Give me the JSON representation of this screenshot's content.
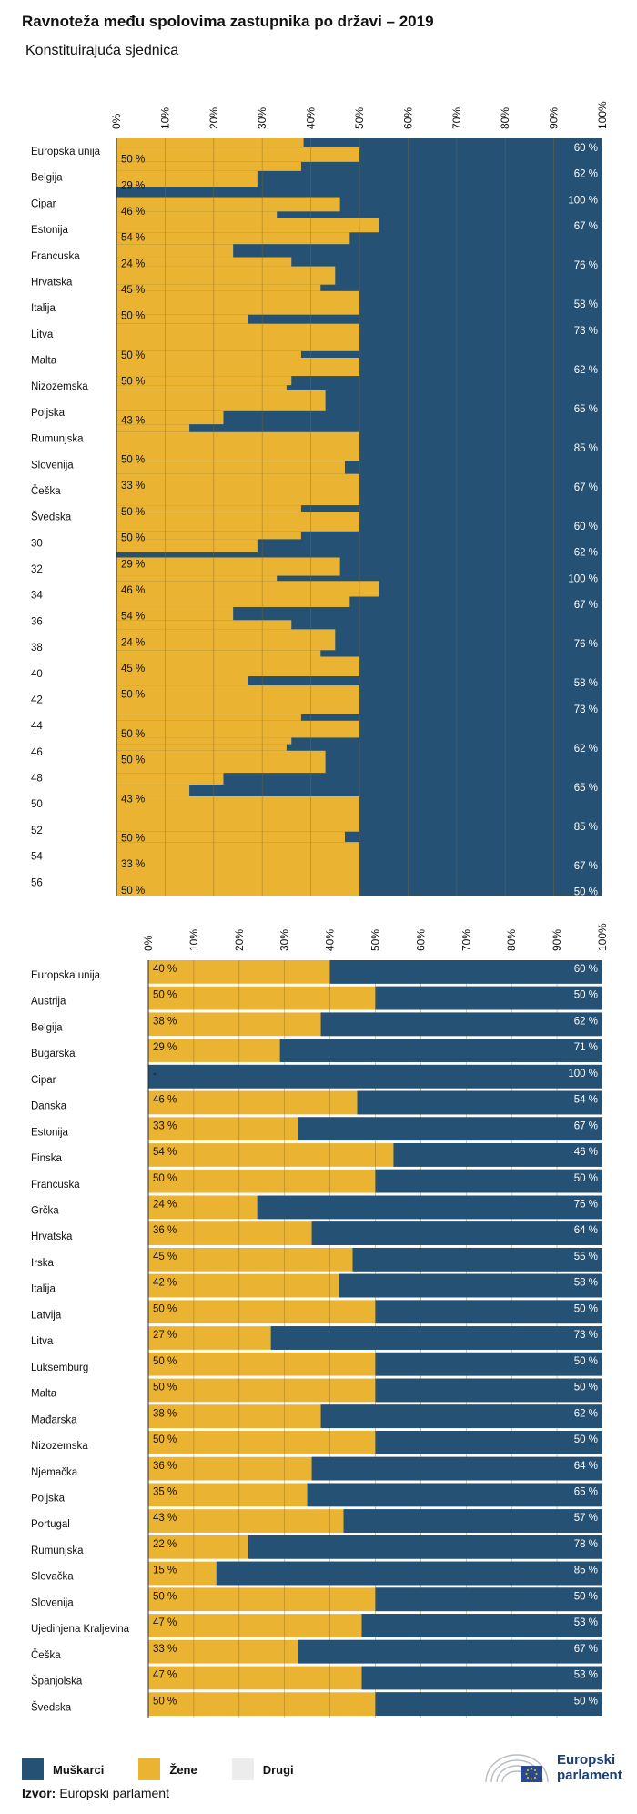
{
  "title": "Ravnoteža među spolovima zastupnika po državi – 2019",
  "subtitle": "Konstituirajuća sjednica",
  "colors": {
    "men": "#245174",
    "women": "#eab332",
    "other": "#ececec",
    "grid": "#8a6a1c"
  },
  "legend": {
    "men": "Muškarci",
    "women": "Žene",
    "other": "Drugi"
  },
  "source": {
    "label": "Izvor:",
    "text": "Europski parlament"
  },
  "logo": {
    "line1": "Europski",
    "line2": "parlament"
  },
  "chart_data": [
    {
      "type": "bar",
      "orientation": "horizontal",
      "stacked": true,
      "xlim": [
        0,
        100
      ],
      "ticks": [
        "0%",
        "10%",
        "20%",
        "30%",
        "40%",
        "50%",
        "60%",
        "70%",
        "80%",
        "90%",
        "100%"
      ],
      "grid": true,
      "categories": [
        "Europska unija",
        "Belgija",
        "Cipar",
        "Estonija",
        "Francuska",
        "Hrvatska",
        "Italija",
        "Litva",
        "Malta",
        "Nizozemska",
        "Poljska",
        "Rumunjska",
        "Slovenija",
        "Češka",
        "Švedska",
        "30",
        "32",
        "34",
        "36",
        "38",
        "40",
        "42",
        "44",
        "46",
        "48",
        "50",
        "52",
        "54",
        "56"
      ],
      "women_labels": [
        {
          "row": 0.3,
          "text": "50 %"
        },
        {
          "row": 1.3,
          "text": "29 %"
        },
        {
          "row": 2.3,
          "text": "46 %"
        },
        {
          "row": 3.3,
          "text": "54 %"
        },
        {
          "row": 4.3,
          "text": "24 %"
        },
        {
          "row": 5.3,
          "text": "45 %"
        },
        {
          "row": 6.3,
          "text": "50 %"
        },
        {
          "row": 7.8,
          "text": "50 %"
        },
        {
          "row": 8.8,
          "text": "50 %"
        },
        {
          "row": 10.3,
          "text": "43 %"
        },
        {
          "row": 11.8,
          "text": "50 %"
        },
        {
          "row": 12.8,
          "text": "33 %"
        },
        {
          "row": 13.8,
          "text": "50 %"
        },
        {
          "row": 14.8,
          "text": "50 %"
        },
        {
          "row": 15.8,
          "text": "29 %"
        },
        {
          "row": 16.8,
          "text": "46 %"
        },
        {
          "row": 17.8,
          "text": "54 %"
        },
        {
          "row": 18.8,
          "text": "24 %"
        },
        {
          "row": 19.8,
          "text": "45 %"
        },
        {
          "row": 20.8,
          "text": "50 %"
        },
        {
          "row": 22.3,
          "text": "50 %"
        },
        {
          "row": 23.3,
          "text": "50 %"
        },
        {
          "row": 24.8,
          "text": "43 %"
        },
        {
          "row": 26.3,
          "text": "50 %"
        },
        {
          "row": 27.3,
          "text": "33 %"
        },
        {
          "row": 28.3,
          "text": "50 %"
        }
      ],
      "men_labels": [
        {
          "row": 0.0,
          "text": "60 %"
        },
        {
          "row": 1.0,
          "text": "62 %"
        },
        {
          "row": 2.0,
          "text": "100 %"
        },
        {
          "row": 3.0,
          "text": "67 %"
        },
        {
          "row": 4.5,
          "text": "76 %"
        },
        {
          "row": 6.0,
          "text": "58 %"
        },
        {
          "row": 7.0,
          "text": "73 %"
        },
        {
          "row": 8.5,
          "text": "62 %"
        },
        {
          "row": 10.0,
          "text": "65 %"
        },
        {
          "row": 11.5,
          "text": "85 %"
        },
        {
          "row": 13.0,
          "text": "67 %"
        },
        {
          "row": 14.5,
          "text": "60 %"
        },
        {
          "row": 15.5,
          "text": "62 %"
        },
        {
          "row": 16.5,
          "text": "100 %"
        },
        {
          "row": 17.5,
          "text": "67 %"
        },
        {
          "row": 19.0,
          "text": "76 %"
        },
        {
          "row": 20.5,
          "text": "58 %"
        },
        {
          "row": 21.5,
          "text": "73 %"
        },
        {
          "row": 23.0,
          "text": "62 %"
        },
        {
          "row": 24.5,
          "text": "65 %"
        },
        {
          "row": 26.0,
          "text": "85 %"
        },
        {
          "row": 27.5,
          "text": "67 %"
        },
        {
          "row": 28.5,
          "text": "50 %"
        }
      ]
    },
    {
      "type": "bar",
      "orientation": "horizontal",
      "stacked": true,
      "xlim": [
        0,
        100
      ],
      "ticks": [
        "0%",
        "10%",
        "20%",
        "30%",
        "40%",
        "50%",
        "60%",
        "70%",
        "80%",
        "90%",
        "100%"
      ],
      "grid": true,
      "categories": [
        "Europska unija",
        "Austrija",
        "Belgija",
        "Bugarska",
        "Cipar",
        "Danska",
        "Estonija",
        "Finska",
        "Francuska",
        "Grčka",
        "Hrvatska",
        "Irska",
        "Italija",
        "Latvija",
        "Litva",
        "Luksemburg",
        "Malta",
        "Mađarska",
        "Nizozemska",
        "Njemačka",
        "Poljska",
        "Portugal",
        "Rumunjska",
        "Slovačka",
        "Slovenija",
        "Ujedinjena Kraljevina",
        "Češka",
        "Španjolska",
        "Švedska"
      ],
      "series": [
        {
          "name": "Žene",
          "values": [
            40,
            50,
            38,
            29,
            0,
            46,
            33,
            54,
            50,
            24,
            36,
            45,
            42,
            50,
            27,
            50,
            50,
            38,
            50,
            36,
            35,
            43,
            22,
            15,
            50,
            47,
            33,
            47,
            50
          ],
          "labels": [
            "40 %",
            "50 %",
            "38 %",
            "29 %",
            "-",
            "46 %",
            "33 %",
            "54 %",
            "50 %",
            "24 %",
            "36 %",
            "45 %",
            "42 %",
            "50 %",
            "27 %",
            "50 %",
            "50 %",
            "38 %",
            "50 %",
            "36 %",
            "35 %",
            "43 %",
            "22 %",
            "15 %",
            "50 %",
            "47 %",
            "33 %",
            "47 %",
            "50 %"
          ]
        },
        {
          "name": "Muškarci",
          "values": [
            60,
            50,
            62,
            71,
            100,
            54,
            67,
            46,
            50,
            76,
            64,
            55,
            58,
            50,
            73,
            50,
            50,
            62,
            50,
            64,
            65,
            57,
            78,
            85,
            50,
            53,
            67,
            53,
            50
          ],
          "labels": [
            "60 %",
            "50 %",
            "62 %",
            "71 %",
            "100 %",
            "54 %",
            "67 %",
            "46 %",
            "50 %",
            "76 %",
            "64 %",
            "55 %",
            "58 %",
            "50 %",
            "73 %",
            "50 %",
            "50 %",
            "62 %",
            "50 %",
            "64 %",
            "65 %",
            "57 %",
            "78 %",
            "85 %",
            "50 %",
            "53 %",
            "67 %",
            "53 %",
            "50 %"
          ]
        }
      ]
    }
  ]
}
